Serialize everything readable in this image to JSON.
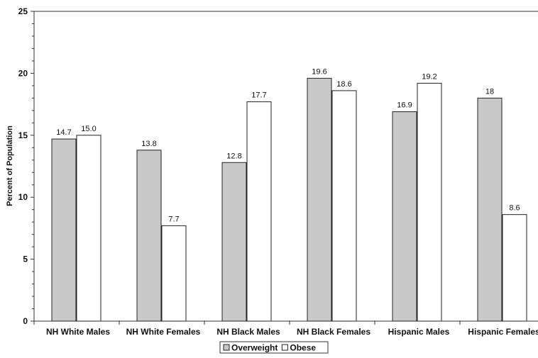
{
  "chart_data": {
    "type": "bar",
    "title": "",
    "xlabel": "",
    "ylabel": "Percent of Population",
    "ylim": [
      0,
      25
    ],
    "yticks": [
      0,
      5,
      10,
      15,
      20,
      25
    ],
    "grid": false,
    "legend_position": "bottom",
    "categories": [
      "NH White Males",
      "NH White Females",
      "NH Black Males",
      "NH Black Females",
      "Hispanic Males",
      "Hispanic Females"
    ],
    "series": [
      {
        "name": "Overweight",
        "color": "#c8c8c8",
        "values": [
          14.7,
          13.8,
          12.8,
          19.6,
          16.9,
          18
        ],
        "labels": [
          "14.7",
          "13.8",
          "12.8",
          "19.6",
          "16.9",
          "18"
        ]
      },
      {
        "name": "Obese",
        "color": "#ffffff",
        "values": [
          15.0,
          7.7,
          17.7,
          18.6,
          19.2,
          8.6
        ],
        "labels": [
          "15.0",
          "7.7",
          "17.7",
          "18.6",
          "19.2",
          "8.6"
        ]
      }
    ]
  }
}
